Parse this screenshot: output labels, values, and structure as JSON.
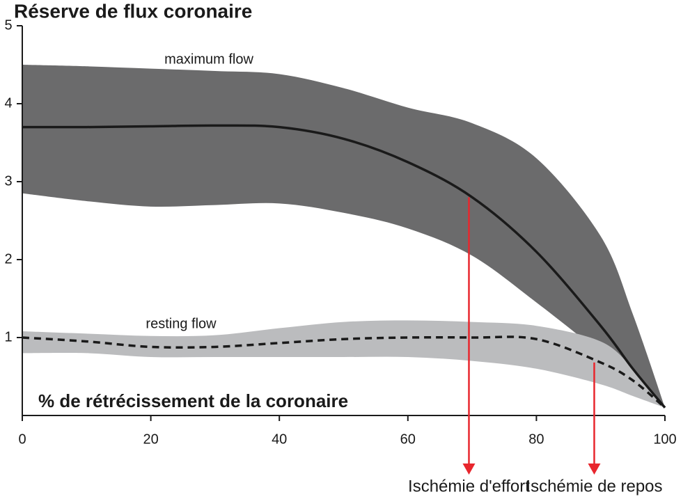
{
  "chart_data": {
    "type": "line",
    "title": "Réserve de flux coronaire",
    "x_label": "% de rétrécissement de la coronaire",
    "x": [
      0,
      10,
      20,
      30,
      40,
      50,
      60,
      70,
      80,
      90,
      95,
      100
    ],
    "series": [
      {
        "name": "maximum flow",
        "color": "#1a1a1a",
        "band_color": "#6b6b6c",
        "line_style": "solid",
        "values": [
          3.7,
          3.7,
          3.71,
          3.72,
          3.7,
          3.55,
          3.25,
          2.8,
          2.1,
          1.15,
          0.6,
          0.1
        ],
        "upper": [
          4.5,
          4.48,
          4.45,
          4.42,
          4.38,
          4.2,
          3.95,
          3.75,
          3.3,
          2.3,
          1.3,
          0.1
        ],
        "lower": [
          2.85,
          2.75,
          2.68,
          2.7,
          2.72,
          2.6,
          2.4,
          2.05,
          1.45,
          0.8,
          0.45,
          0.1
        ]
      },
      {
        "name": "resting flow",
        "color": "#1a1a1a",
        "band_color": "#bbbcbe",
        "line_style": "dashed",
        "values": [
          1.0,
          0.95,
          0.88,
          0.88,
          0.93,
          0.98,
          1.0,
          1.0,
          0.98,
          0.68,
          0.45,
          0.1
        ],
        "upper": [
          1.08,
          1.05,
          1.02,
          1.03,
          1.12,
          1.2,
          1.22,
          1.2,
          1.15,
          0.95,
          0.6,
          0.1
        ],
        "lower": [
          0.8,
          0.8,
          0.75,
          0.75,
          0.75,
          0.75,
          0.75,
          0.7,
          0.6,
          0.4,
          0.25,
          0.1
        ]
      }
    ],
    "annotations": [
      {
        "text": "Ischémie d'effort",
        "x": 69.5,
        "y": 2.8,
        "color": "#e8262d"
      },
      {
        "text": "Ischémie de repos",
        "x": 89,
        "y": 0.68,
        "color": "#e8262d"
      }
    ],
    "xlim": [
      0,
      100
    ],
    "xticks": [
      0,
      20,
      40,
      60,
      80,
      100
    ],
    "ylim": [
      0,
      5
    ],
    "yticks": [
      1,
      2,
      3,
      4,
      5
    ]
  }
}
